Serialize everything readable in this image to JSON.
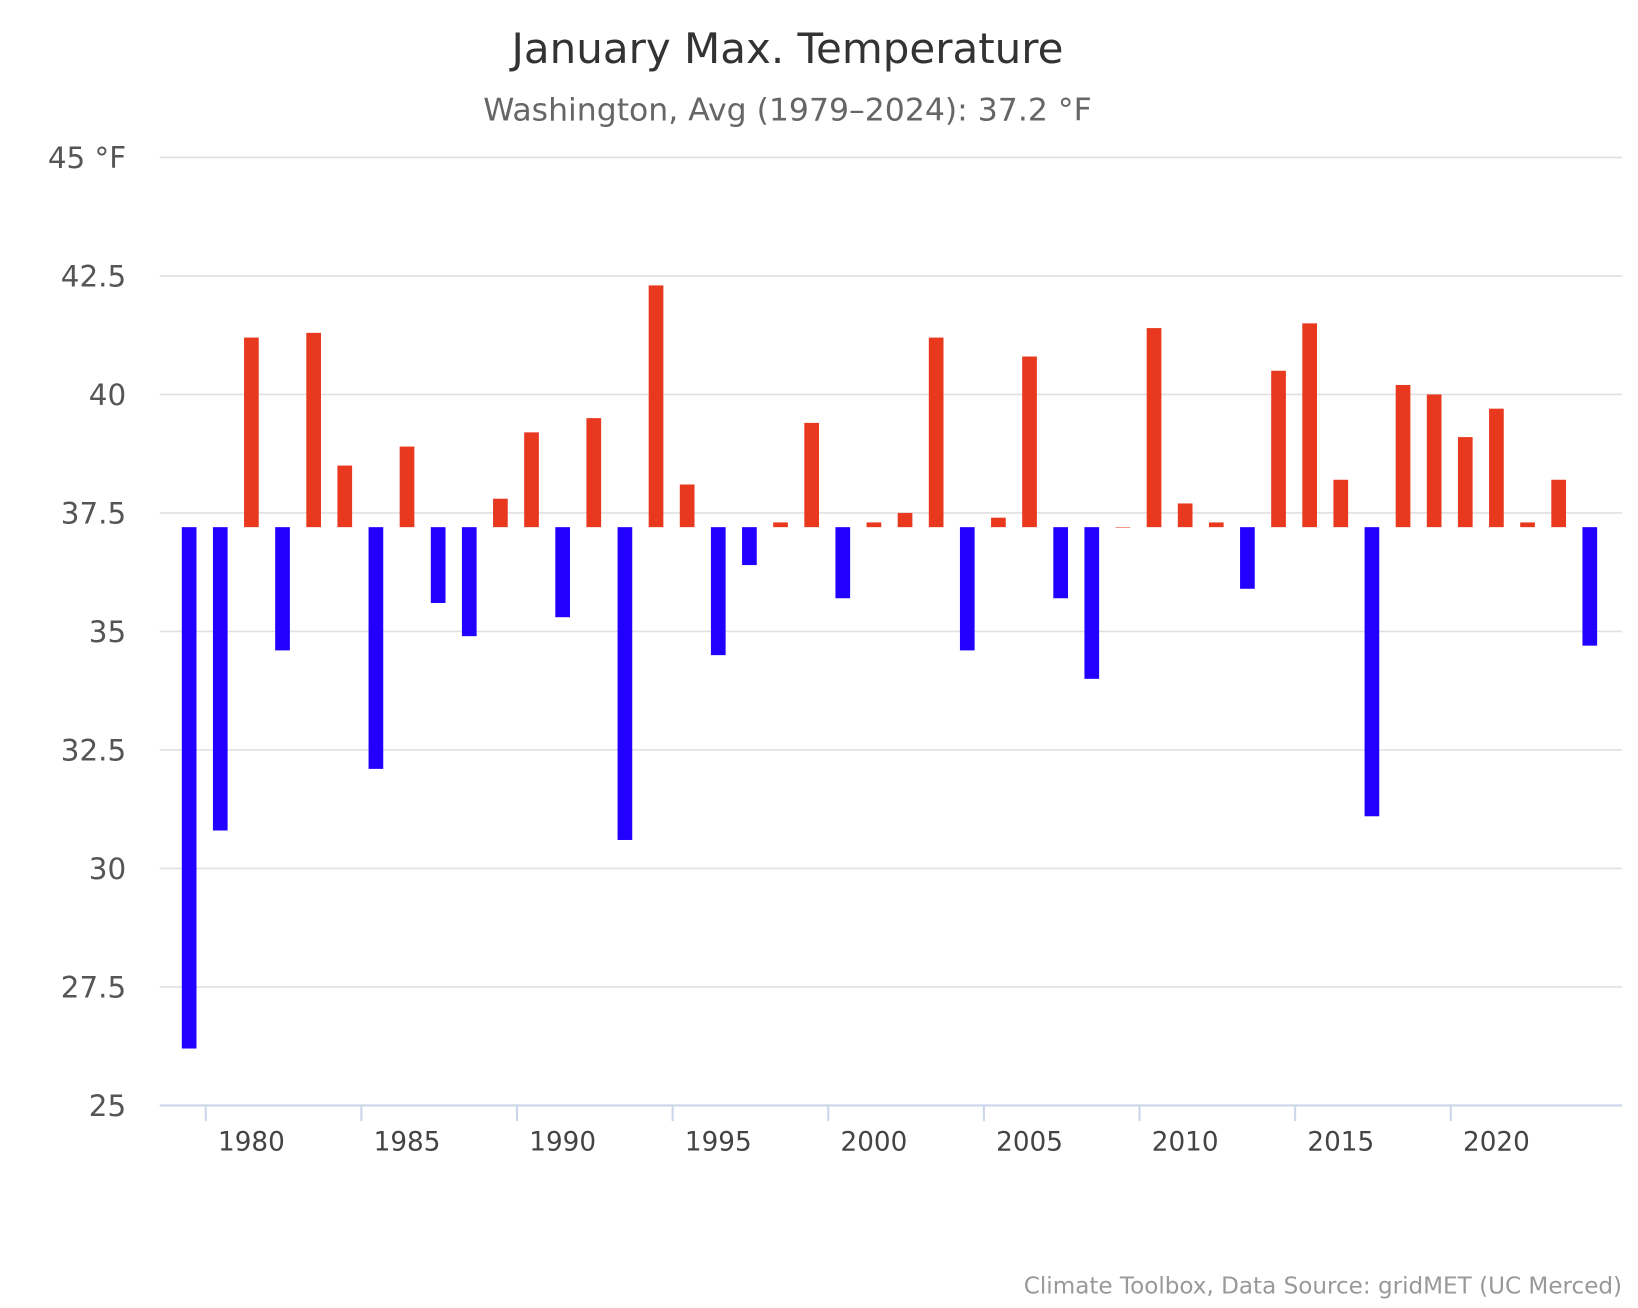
{
  "chart_data": {
    "type": "bar",
    "title": "January Max. Temperature",
    "subtitle": "Washington, Avg (1979–2024): 37.2 °F",
    "credit": "Climate Toolbox, Data Source: gridMET (UC Merced)",
    "xlabel": "",
    "ylabel": "°F",
    "baseline": 37.2,
    "ylim": [
      25,
      45
    ],
    "yticks": [
      {
        "value": 45,
        "label": "45 °F"
      },
      {
        "value": 42.5,
        "label": "42.5"
      },
      {
        "value": 40,
        "label": "40"
      },
      {
        "value": 37.5,
        "label": "37.5"
      },
      {
        "value": 35,
        "label": "35"
      },
      {
        "value": 32.5,
        "label": "32.5"
      },
      {
        "value": 30,
        "label": "30"
      },
      {
        "value": 27.5,
        "label": "27.5"
      },
      {
        "value": 25,
        "label": "25"
      }
    ],
    "xticks": [
      "1980",
      "1985",
      "1990",
      "1995",
      "2000",
      "2005",
      "2010",
      "2015",
      "2020"
    ],
    "grid": true,
    "colors": {
      "above": "#e8391f",
      "below": "#2200ff"
    },
    "categories": [
      1979,
      1980,
      1981,
      1982,
      1983,
      1984,
      1985,
      1986,
      1987,
      1988,
      1989,
      1990,
      1991,
      1992,
      1993,
      1994,
      1995,
      1996,
      1997,
      1998,
      1999,
      2000,
      2001,
      2002,
      2003,
      2004,
      2005,
      2006,
      2007,
      2008,
      2009,
      2010,
      2011,
      2012,
      2013,
      2014,
      2015,
      2016,
      2017,
      2018,
      2019,
      2020,
      2021,
      2022,
      2023,
      2024
    ],
    "values": [
      26.2,
      30.8,
      41.2,
      34.6,
      41.3,
      38.5,
      32.1,
      38.9,
      35.6,
      34.9,
      37.8,
      39.2,
      35.3,
      39.5,
      30.6,
      42.3,
      38.1,
      34.5,
      36.4,
      37.3,
      39.4,
      35.7,
      37.3,
      37.5,
      41.2,
      34.6,
      37.4,
      40.8,
      35.7,
      34.0,
      37.2,
      41.4,
      37.7,
      37.3,
      35.9,
      40.5,
      41.5,
      38.2,
      31.1,
      40.2,
      40.0,
      39.1,
      39.7,
      37.3,
      38.2,
      34.7
    ]
  }
}
